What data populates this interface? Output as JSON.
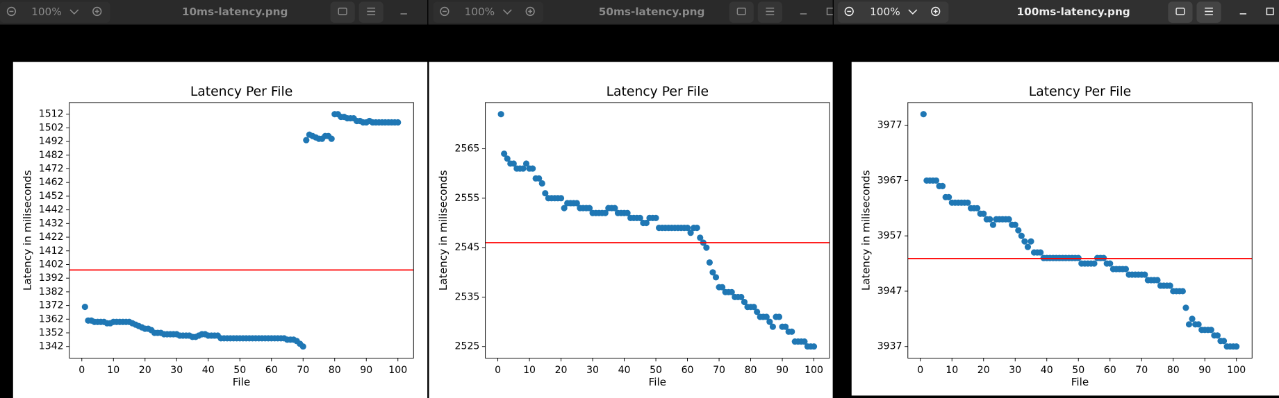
{
  "windows": [
    {
      "zoom": "100%",
      "filename": "10ms-latency.png",
      "chart_data": {
        "type": "scatter",
        "title": "Latency Per File",
        "xlabel": "File",
        "ylabel": "Latency in miliseconds",
        "color": "#1f77b4",
        "x": [
          1,
          2,
          3,
          4,
          5,
          6,
          7,
          8,
          9,
          10,
          11,
          12,
          13,
          14,
          15,
          16,
          17,
          18,
          19,
          20,
          21,
          22,
          23,
          24,
          25,
          26,
          27,
          28,
          29,
          30,
          31,
          32,
          33,
          34,
          35,
          36,
          37,
          38,
          39,
          40,
          41,
          42,
          43,
          44,
          45,
          46,
          47,
          48,
          49,
          50,
          51,
          52,
          53,
          54,
          55,
          56,
          57,
          58,
          59,
          60,
          61,
          62,
          63,
          64,
          65,
          66,
          67,
          68,
          69,
          70,
          71,
          72,
          73,
          74,
          75,
          76,
          77,
          78,
          79,
          80,
          81,
          82,
          83,
          84,
          85,
          86,
          87,
          88,
          89,
          90,
          91,
          92,
          93,
          94,
          95,
          96,
          97,
          98,
          99,
          100
        ],
        "values": [
          1371,
          1361,
          1361,
          1360,
          1360,
          1360,
          1360,
          1359,
          1359,
          1360,
          1360,
          1360,
          1360,
          1360,
          1360,
          1359,
          1358,
          1357,
          1356,
          1355,
          1355,
          1354,
          1352,
          1352,
          1352,
          1351,
          1351,
          1351,
          1351,
          1351,
          1350,
          1350,
          1350,
          1350,
          1349,
          1349,
          1350,
          1351,
          1351,
          1350,
          1350,
          1350,
          1350,
          1348,
          1348,
          1348,
          1348,
          1348,
          1348,
          1348,
          1348,
          1348,
          1348,
          1348,
          1348,
          1348,
          1348,
          1348,
          1348,
          1348,
          1348,
          1348,
          1348,
          1348,
          1347,
          1347,
          1347,
          1346,
          1344,
          1342,
          1493,
          1497,
          1496,
          1495,
          1494,
          1494,
          1496,
          1496,
          1494,
          1512,
          1512,
          1510,
          1510,
          1509,
          1509,
          1509,
          1507,
          1507,
          1506,
          1506,
          1507,
          1506,
          1506,
          1506,
          1506,
          1506,
          1506,
          1506,
          1506,
          1506
        ],
        "hline": {
          "value": 1398,
          "color": "red"
        },
        "xlim": [
          -3.95,
          104.95
        ],
        "xticks": [
          0,
          10,
          20,
          30,
          40,
          50,
          60,
          70,
          80,
          90,
          100
        ],
        "ylim": [
          1333.5,
          1520.5
        ],
        "yticks": [
          1342,
          1352,
          1362,
          1372,
          1382,
          1392,
          1402,
          1412,
          1422,
          1432,
          1442,
          1452,
          1462,
          1472,
          1482,
          1492,
          1502,
          1512
        ]
      }
    },
    {
      "zoom": "100%",
      "filename": "50ms-latency.png",
      "chart_data": {
        "type": "scatter",
        "title": "Latency Per File",
        "xlabel": "File",
        "ylabel": "Latency in miliseconds",
        "color": "#1f77b4",
        "x": [
          1,
          2,
          3,
          4,
          5,
          6,
          7,
          8,
          9,
          10,
          11,
          12,
          13,
          14,
          15,
          16,
          17,
          18,
          19,
          20,
          21,
          22,
          23,
          24,
          25,
          26,
          27,
          28,
          29,
          30,
          31,
          32,
          33,
          34,
          35,
          36,
          37,
          38,
          39,
          40,
          41,
          42,
          43,
          44,
          45,
          46,
          47,
          48,
          49,
          50,
          51,
          52,
          53,
          54,
          55,
          56,
          57,
          58,
          59,
          60,
          61,
          62,
          63,
          64,
          65,
          66,
          67,
          68,
          69,
          70,
          71,
          72,
          73,
          74,
          75,
          76,
          77,
          78,
          79,
          80,
          81,
          82,
          83,
          84,
          85,
          86,
          87,
          88,
          89,
          90,
          91,
          92,
          93,
          94,
          95,
          96,
          97,
          98,
          99,
          100
        ],
        "values": [
          2572,
          2564,
          2563,
          2562,
          2562,
          2561,
          2561,
          2561,
          2562,
          2561,
          2561,
          2559,
          2559,
          2558,
          2556,
          2555,
          2555,
          2555,
          2555,
          2555,
          2553,
          2554,
          2554,
          2554,
          2554,
          2553,
          2553,
          2553,
          2553,
          2552,
          2552,
          2552,
          2552,
          2552,
          2553,
          2553,
          2553,
          2552,
          2552,
          2552,
          2552,
          2551,
          2551,
          2551,
          2551,
          2550,
          2550,
          2551,
          2551,
          2551,
          2549,
          2549,
          2549,
          2549,
          2549,
          2549,
          2549,
          2549,
          2549,
          2549,
          2548,
          2549,
          2549,
          2547,
          2546,
          2545,
          2542,
          2540,
          2539,
          2537,
          2537,
          2536,
          2536,
          2536,
          2535,
          2535,
          2535,
          2534,
          2533,
          2533,
          2533,
          2532,
          2531,
          2531,
          2531,
          2530,
          2529,
          2531,
          2531,
          2529,
          2529,
          2528,
          2528,
          2526,
          2526,
          2526,
          2526,
          2525,
          2525,
          2525
        ],
        "hline": {
          "value": 2546,
          "color": "red"
        },
        "xlim": [
          -3.95,
          104.95
        ],
        "xticks": [
          0,
          10,
          20,
          30,
          40,
          50,
          60,
          70,
          80,
          90,
          100
        ],
        "ylim": [
          2522.65,
          2574.35
        ],
        "yticks": [
          2525,
          2535,
          2545,
          2555,
          2565
        ]
      }
    },
    {
      "zoom": "100%",
      "filename": "100ms-latency.png",
      "chart_data": {
        "type": "scatter",
        "title": "Latency Per File",
        "xlabel": "File",
        "ylabel": "Latency in miliseconds",
        "color": "#1f77b4",
        "x": [
          1,
          2,
          3,
          4,
          5,
          6,
          7,
          8,
          9,
          10,
          11,
          12,
          13,
          14,
          15,
          16,
          17,
          18,
          19,
          20,
          21,
          22,
          23,
          24,
          25,
          26,
          27,
          28,
          29,
          30,
          31,
          32,
          33,
          34,
          35,
          36,
          37,
          38,
          39,
          40,
          41,
          42,
          43,
          44,
          45,
          46,
          47,
          48,
          49,
          50,
          51,
          52,
          53,
          54,
          55,
          56,
          57,
          58,
          59,
          60,
          61,
          62,
          63,
          64,
          65,
          66,
          67,
          68,
          69,
          70,
          71,
          72,
          73,
          74,
          75,
          76,
          77,
          78,
          79,
          80,
          81,
          82,
          83,
          84,
          85,
          86,
          87,
          88,
          89,
          90,
          91,
          92,
          93,
          94,
          95,
          96,
          97,
          98,
          99,
          100
        ],
        "values": [
          3979,
          3967,
          3967,
          3967,
          3967,
          3966,
          3966,
          3964,
          3964,
          3963,
          3963,
          3963,
          3963,
          3963,
          3963,
          3962,
          3962,
          3962,
          3961,
          3961,
          3960,
          3960,
          3959,
          3960,
          3960,
          3960,
          3960,
          3960,
          3959,
          3959,
          3958,
          3957,
          3956,
          3955,
          3956,
          3954,
          3954,
          3954,
          3953,
          3953,
          3953,
          3953,
          3953,
          3953,
          3953,
          3953,
          3953,
          3953,
          3953,
          3953,
          3952,
          3952,
          3952,
          3952,
          3952,
          3953,
          3953,
          3953,
          3952,
          3952,
          3951,
          3951,
          3951,
          3951,
          3951,
          3950,
          3950,
          3950,
          3950,
          3950,
          3950,
          3949,
          3949,
          3949,
          3949,
          3948,
          3948,
          3948,
          3948,
          3947,
          3947,
          3947,
          3947,
          3944,
          3941,
          3942,
          3941,
          3941,
          3940,
          3940,
          3940,
          3940,
          3939,
          3939,
          3938,
          3938,
          3937,
          3937,
          3937,
          3937
        ],
        "hline": {
          "value": 3952.9,
          "color": "red"
        },
        "xlim": [
          -3.95,
          104.95
        ],
        "xticks": [
          0,
          10,
          20,
          30,
          40,
          50,
          60,
          70,
          80,
          90,
          100
        ],
        "ylim": [
          3934.9,
          3981.1
        ],
        "yticks": [
          3937,
          3947,
          3957,
          3967,
          3977
        ]
      }
    }
  ]
}
